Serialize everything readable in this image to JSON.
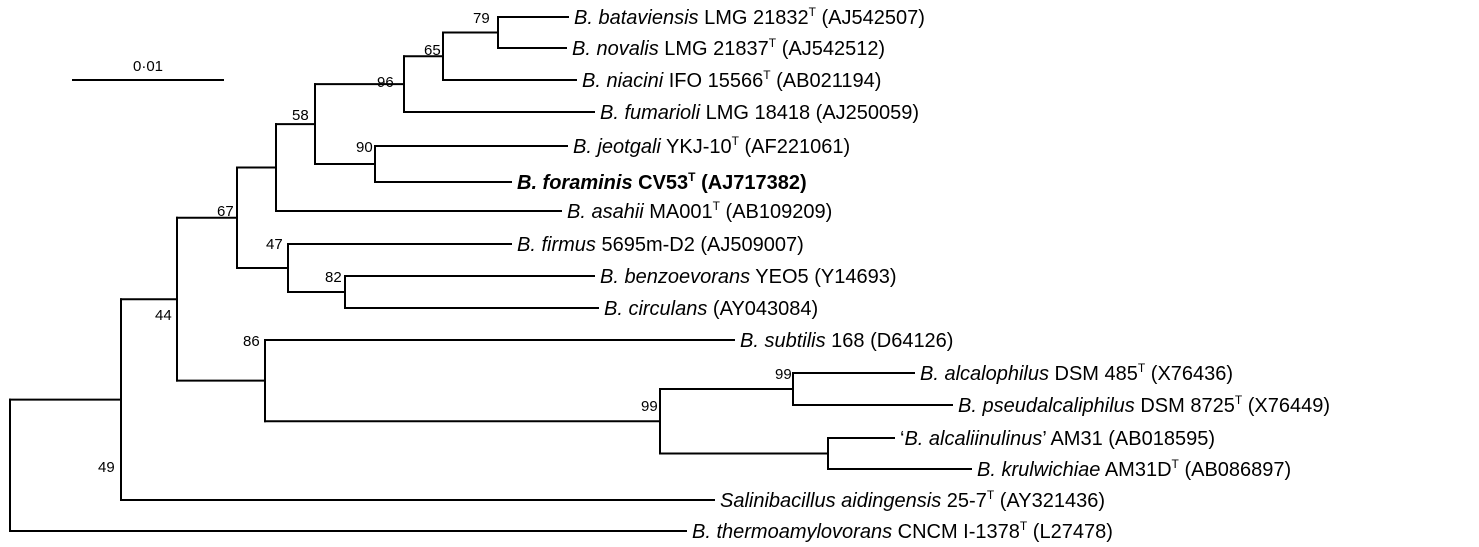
{
  "scale": {
    "label": "0·01"
  },
  "taxa": [
    {
      "id": "bat",
      "sp": "B. bataviensis",
      "strain": " LMG 21832",
      "type": true,
      "acc": " (AJ542507)"
    },
    {
      "id": "nov",
      "sp": "B. novalis",
      "strain": " LMG 21837",
      "type": true,
      "acc": " (AJ542512)"
    },
    {
      "id": "nia",
      "sp": "B. niacini",
      "strain": " IFO 15566",
      "type": true,
      "acc": " (AB021194)"
    },
    {
      "id": "fum",
      "sp": "B. fumarioli",
      "strain": " LMG 18418",
      "type": false,
      "acc": " (AJ250059)"
    },
    {
      "id": "jeo",
      "sp": "B. jeotgali",
      "strain": " YKJ-10",
      "type": true,
      "acc": " (AF221061)"
    },
    {
      "id": "for",
      "sp": "B. foraminis",
      "strain": " CV53",
      "type": true,
      "acc": " (AJ717382)",
      "bold": true
    },
    {
      "id": "asa",
      "sp": "B. asahii",
      "strain": " MA001",
      "type": true,
      "acc": " (AB109209)"
    },
    {
      "id": "fir",
      "sp": "B. firmus",
      "strain": " 5695m-D2",
      "type": false,
      "acc": " (AJ509007)"
    },
    {
      "id": "ben",
      "sp": "B. benzoevorans",
      "strain": " YEO5",
      "type": false,
      "acc": " (Y14693)"
    },
    {
      "id": "cir",
      "sp": "B. circulans",
      "strain": "",
      "type": false,
      "acc": " (AY043084)"
    },
    {
      "id": "sub",
      "sp": "B. subtilis",
      "strain": " 168",
      "type": false,
      "acc": " (D64126)"
    },
    {
      "id": "alc",
      "sp": "B. alcalophilus",
      "strain": " DSM 485",
      "type": true,
      "acc": " (X76436)"
    },
    {
      "id": "pse",
      "sp": "B. pseudalcaliphilus",
      "strain": " DSM 8725",
      "type": true,
      "acc": " (X76449)"
    },
    {
      "id": "ain",
      "sp": "B. alcaliinulinus",
      "pre": "‘",
      "post": "’",
      "strain": " AM31",
      "type": false,
      "acc": " (AB018595)"
    },
    {
      "id": "kru",
      "sp": "B. krulwichiae",
      "strain": " AM31D",
      "type": true,
      "acc": " (AB086897)"
    },
    {
      "id": "sal",
      "sp": "Salinibacillus aidingensis",
      "strain": " 25-7",
      "type": true,
      "acc": " (AY321436)"
    },
    {
      "id": "the",
      "sp": "B. thermoamylovorans",
      "strain": " CNCM I-1378",
      "type": true,
      "acc": " (L27478)"
    }
  ],
  "type_marker": "T",
  "bootstrap": {
    "n_bat_nov": "79",
    "n_bat_nia": "65",
    "n_bat_fum": "96",
    "n_jeo_for": "90",
    "n_top": "58",
    "n_firmus_grp": "47",
    "n_ben_cir": "82",
    "n_upper": "67",
    "n_alk": "99",
    "n_alc_pse": "99",
    "n_sub_alk": "86",
    "n_ingroup": "44",
    "n_sal": "49"
  }
}
